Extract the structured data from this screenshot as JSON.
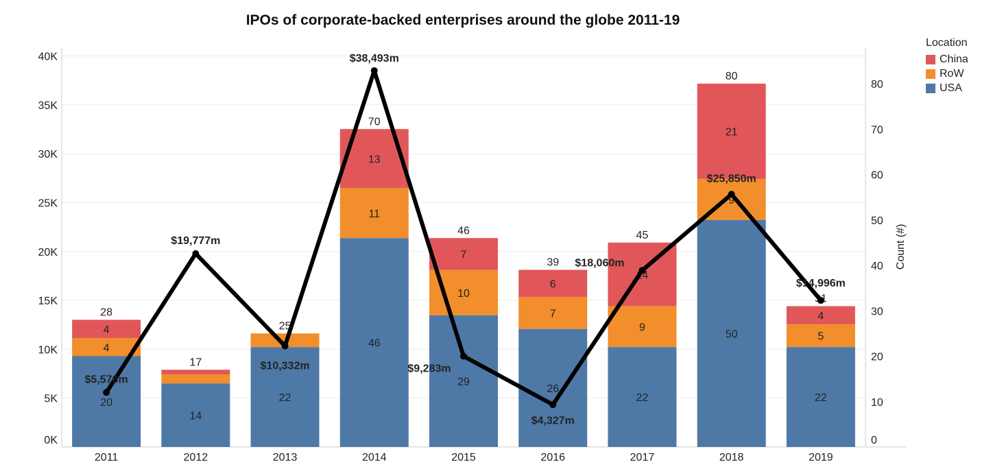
{
  "chart_data": {
    "type": "bar+line",
    "title": "IPOs of corporate-backed enterprises around the globe 2011-19",
    "categories": [
      "2011",
      "2012",
      "2013",
      "2014",
      "2015",
      "2016",
      "2017",
      "2018",
      "2019"
    ],
    "bar_series": [
      {
        "name": "USA",
        "color": "#4e79a7",
        "values": [
          20,
          14,
          22,
          46,
          29,
          26,
          22,
          50,
          22
        ]
      },
      {
        "name": "RoW",
        "color": "#f28e2b",
        "values": [
          4,
          2,
          3,
          11,
          10,
          7,
          9,
          9,
          5
        ]
      },
      {
        "name": "China",
        "color": "#e15759",
        "values": [
          4,
          1,
          0,
          13,
          7,
          6,
          14,
          21,
          4
        ]
      }
    ],
    "bar_totals": [
      28,
      17,
      25,
      70,
      46,
      39,
      45,
      80,
      31
    ],
    "bar_segment_labels_shown": {
      "USA": [
        true,
        true,
        true,
        true,
        true,
        true,
        true,
        true,
        true
      ],
      "RoW": [
        true,
        false,
        false,
        true,
        true,
        true,
        true,
        true,
        true
      ],
      "China": [
        true,
        false,
        false,
        true,
        true,
        true,
        true,
        true,
        true
      ]
    },
    "line_series": {
      "color": "#000000",
      "values": [
        5576,
        19777,
        10332,
        38493,
        9283,
        4327,
        18060,
        25850,
        14996
      ],
      "labels": [
        "$5,576m",
        "$19,777m",
        "$10,332m",
        "$38,493m",
        "$9,283m",
        "$4,327m",
        "$18,060m",
        "$25,850m",
        "$14,996m"
      ]
    },
    "left_axis": {
      "ticks": [
        0,
        5000,
        10000,
        15000,
        20000,
        25000,
        30000,
        35000,
        40000
      ],
      "tick_labels": [
        "0K",
        "5K",
        "10K",
        "15K",
        "20K",
        "25K",
        "30K",
        "35K",
        "40K"
      ],
      "ylim": [
        0,
        41000
      ]
    },
    "right_axis": {
      "label": "Count (#)",
      "ticks": [
        0,
        10,
        20,
        30,
        40,
        50,
        60,
        70,
        80
      ],
      "ylim": [
        0,
        80
      ]
    },
    "legend": {
      "title": "Location",
      "position": "top-right",
      "items": [
        "China",
        "RoW",
        "USA"
      ]
    },
    "grid": true
  }
}
